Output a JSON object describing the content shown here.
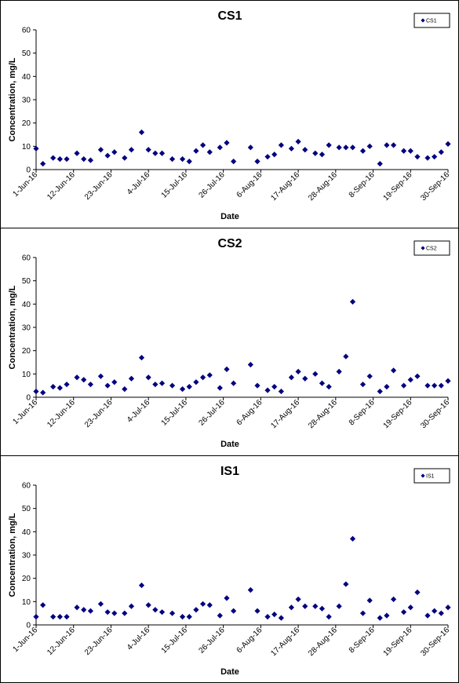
{
  "chart_data": [
    {
      "type": "scatter",
      "title": "CS1",
      "xlabel": "Date",
      "ylabel": "Concentration, mg/L",
      "ylim": [
        0,
        60
      ],
      "yticks": [
        "0",
        "10",
        "20",
        "30",
        "40",
        "50",
        "60"
      ],
      "xlim": [
        "2016-06-01",
        "2016-09-30"
      ],
      "xtick_labels": [
        "1-Jun-16",
        "12-Jun-16",
        "23-Jun-16",
        "4-Jul-16",
        "15-Jul-16",
        "26-Jul-16",
        "6-Aug-16",
        "17-Aug-16",
        "28-Aug-16",
        "8-Sep-16",
        "19-Sep-16",
        "30-Sep-16"
      ],
      "legend": {
        "position": "top-right",
        "entries": [
          "CS1"
        ]
      },
      "series": [
        {
          "name": "CS1",
          "color": "#000080",
          "x": [
            "2016-06-01",
            "2016-06-03",
            "2016-06-06",
            "2016-06-08",
            "2016-06-10",
            "2016-06-13",
            "2016-06-15",
            "2016-06-17",
            "2016-06-20",
            "2016-06-22",
            "2016-06-24",
            "2016-06-27",
            "2016-06-29",
            "2016-07-02",
            "2016-07-04",
            "2016-07-06",
            "2016-07-08",
            "2016-07-11",
            "2016-07-14",
            "2016-07-16",
            "2016-07-18",
            "2016-07-20",
            "2016-07-22",
            "2016-07-25",
            "2016-07-27",
            "2016-07-29",
            "2016-08-03",
            "2016-08-05",
            "2016-08-08",
            "2016-08-10",
            "2016-08-12",
            "2016-08-15",
            "2016-08-17",
            "2016-08-19",
            "2016-08-22",
            "2016-08-24",
            "2016-08-26",
            "2016-08-29",
            "2016-08-31",
            "2016-09-02",
            "2016-09-05",
            "2016-09-07",
            "2016-09-10",
            "2016-09-12",
            "2016-09-14",
            "2016-09-17",
            "2016-09-19",
            "2016-09-21",
            "2016-09-24",
            "2016-09-26",
            "2016-09-28",
            "2016-09-30"
          ],
          "y": [
            9,
            2.5,
            5,
            4.5,
            4.5,
            7,
            4.5,
            4,
            8.5,
            6,
            7.5,
            5,
            8.5,
            16,
            8.5,
            7,
            7,
            4.5,
            4.5,
            3.5,
            8,
            10.5,
            7.5,
            9.5,
            11.5,
            3.5,
            9.5,
            3.5,
            5.5,
            6.5,
            10.5,
            9,
            12,
            8.5,
            7,
            6.5,
            10.5,
            9.5,
            9.5,
            9.5,
            8,
            10,
            2.5,
            10.5,
            10.5,
            8,
            8,
            5.5,
            5,
            5.5,
            7.5,
            11
          ]
        }
      ]
    },
    {
      "type": "scatter",
      "title": "CS2",
      "xlabel": "Date",
      "ylabel": "Concentration, mg/L",
      "ylim": [
        0,
        60
      ],
      "yticks": [
        "0",
        "10",
        "20",
        "30",
        "40",
        "50",
        "60"
      ],
      "xlim": [
        "2016-06-01",
        "2016-09-30"
      ],
      "xtick_labels": [
        "1-Jun-16",
        "12-Jun-16",
        "23-Jun-16",
        "4-Jul-16",
        "15-Jul-16",
        "26-Jul-16",
        "6-Aug-16",
        "17-Aug-16",
        "28-Aug-16",
        "8-Sep-16",
        "19-Sep-16",
        "30-Sep-16"
      ],
      "legend": {
        "position": "top-right",
        "entries": [
          "CS2"
        ]
      },
      "series": [
        {
          "name": "CS2",
          "color": "#000080",
          "x": [
            "2016-06-01",
            "2016-06-03",
            "2016-06-06",
            "2016-06-08",
            "2016-06-10",
            "2016-06-13",
            "2016-06-15",
            "2016-06-17",
            "2016-06-20",
            "2016-06-22",
            "2016-06-24",
            "2016-06-27",
            "2016-06-29",
            "2016-07-02",
            "2016-07-04",
            "2016-07-06",
            "2016-07-08",
            "2016-07-11",
            "2016-07-14",
            "2016-07-16",
            "2016-07-18",
            "2016-07-20",
            "2016-07-22",
            "2016-07-25",
            "2016-07-27",
            "2016-07-29",
            "2016-08-03",
            "2016-08-05",
            "2016-08-08",
            "2016-08-10",
            "2016-08-12",
            "2016-08-15",
            "2016-08-17",
            "2016-08-19",
            "2016-08-22",
            "2016-08-24",
            "2016-08-26",
            "2016-08-29",
            "2016-08-31",
            "2016-09-02",
            "2016-09-05",
            "2016-09-07",
            "2016-09-10",
            "2016-09-12",
            "2016-09-14",
            "2016-09-17",
            "2016-09-19",
            "2016-09-21",
            "2016-09-24",
            "2016-09-26",
            "2016-09-28",
            "2016-09-30"
          ],
          "y": [
            2.5,
            2,
            4.5,
            4,
            5.5,
            8.5,
            7.5,
            5.5,
            9,
            5,
            6.5,
            3.5,
            8,
            17,
            8.5,
            5.5,
            6,
            5,
            3.5,
            4.5,
            6.5,
            8.5,
            9.5,
            4,
            12,
            6,
            14,
            5,
            3,
            4.5,
            2.5,
            8.5,
            11,
            8,
            10,
            6,
            4.5,
            11,
            17.5,
            41,
            5.5,
            9,
            2.5,
            4.5,
            11.5,
            5,
            7.5,
            9,
            5,
            5,
            5,
            7
          ]
        }
      ]
    },
    {
      "type": "scatter",
      "title": "IS1",
      "xlabel": "Date",
      "ylabel": "Concentration, mg/L",
      "ylim": [
        0,
        60
      ],
      "yticks": [
        "0",
        "10",
        "20",
        "30",
        "40",
        "50",
        "60"
      ],
      "xlim": [
        "2016-06-01",
        "2016-09-30"
      ],
      "xtick_labels": [
        "1-Jun-16",
        "12-Jun-16",
        "23-Jun-16",
        "4-Jul-16",
        "15-Jul-16",
        "26-Jul-16",
        "6-Aug-16",
        "17-Aug-16",
        "28-Aug-16",
        "8-Sep-16",
        "19-Sep-16",
        "30-Sep-16"
      ],
      "legend": {
        "position": "top-right",
        "entries": [
          "IS1"
        ]
      },
      "series": [
        {
          "name": "IS1",
          "color": "#000080",
          "x": [
            "2016-06-01",
            "2016-06-03",
            "2016-06-06",
            "2016-06-08",
            "2016-06-10",
            "2016-06-13",
            "2016-06-15",
            "2016-06-17",
            "2016-06-20",
            "2016-06-22",
            "2016-06-24",
            "2016-06-27",
            "2016-06-29",
            "2016-07-02",
            "2016-07-04",
            "2016-07-06",
            "2016-07-08",
            "2016-07-11",
            "2016-07-14",
            "2016-07-16",
            "2016-07-18",
            "2016-07-20",
            "2016-07-22",
            "2016-07-25",
            "2016-07-27",
            "2016-07-29",
            "2016-08-03",
            "2016-08-05",
            "2016-08-08",
            "2016-08-10",
            "2016-08-12",
            "2016-08-15",
            "2016-08-17",
            "2016-08-19",
            "2016-08-22",
            "2016-08-24",
            "2016-08-26",
            "2016-08-29",
            "2016-08-31",
            "2016-09-02",
            "2016-09-05",
            "2016-09-07",
            "2016-09-10",
            "2016-09-12",
            "2016-09-14",
            "2016-09-17",
            "2016-09-19",
            "2016-09-21",
            "2016-09-24",
            "2016-09-26",
            "2016-09-28",
            "2016-09-30"
          ],
          "y": [
            3.5,
            8.5,
            3.5,
            3.5,
            3.5,
            7.5,
            6.5,
            6,
            9,
            5.5,
            5,
            5,
            8,
            17,
            8.5,
            6.5,
            5.5,
            5,
            3.5,
            3.5,
            6.5,
            9,
            8.5,
            4,
            11.5,
            6,
            15,
            6,
            3.5,
            4.5,
            3,
            7.5,
            11,
            8,
            8,
            7,
            3.5,
            8,
            17.5,
            37,
            5,
            10.5,
            3,
            4,
            11,
            5.5,
            7.5,
            14,
            4,
            6,
            5,
            7.5
          ]
        }
      ]
    }
  ]
}
